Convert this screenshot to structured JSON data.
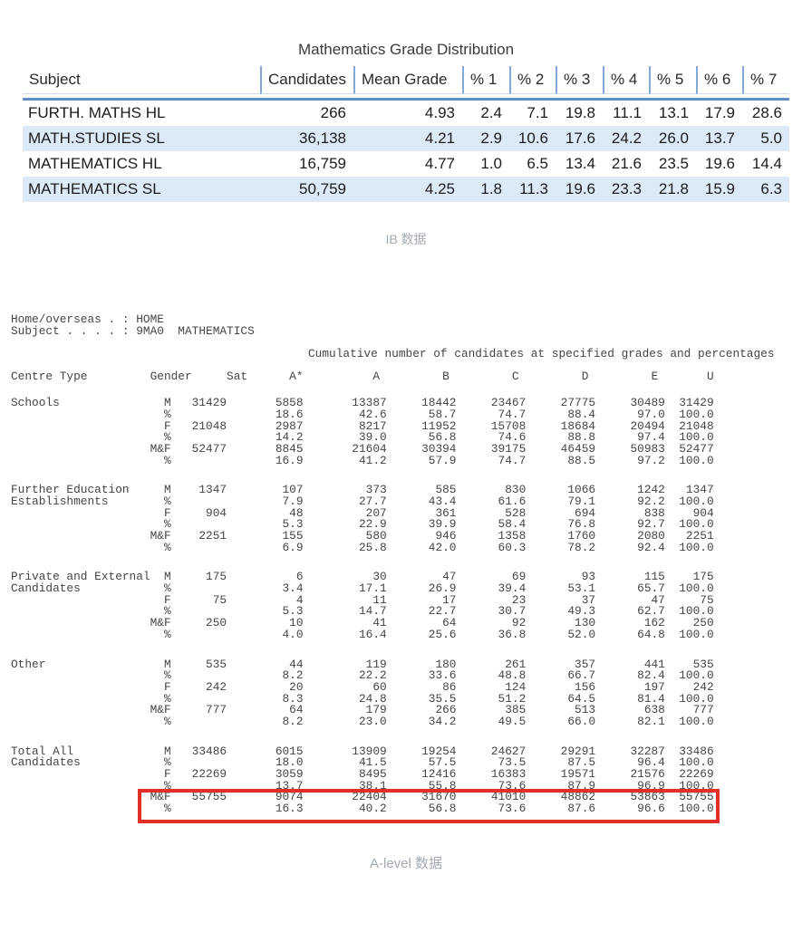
{
  "ib": {
    "title": "Mathematics Grade Distribution",
    "columns": [
      "Subject",
      "Candidates",
      "Mean Grade",
      "% 1",
      "% 2",
      "% 3",
      "% 4",
      "% 5",
      "% 6",
      "% 7"
    ],
    "rows": [
      {
        "subject": "FURTH. MATHS HL",
        "candidates": "266",
        "mean": "4.93",
        "pcts": [
          "2.4",
          "7.1",
          "19.8",
          "11.1",
          "13.1",
          "17.9",
          "28.6"
        ]
      },
      {
        "subject": "MATH.STUDIES SL",
        "candidates": "36,138",
        "mean": "4.21",
        "pcts": [
          "2.9",
          "10.6",
          "17.6",
          "24.2",
          "26.0",
          "13.7",
          "5.0"
        ]
      },
      {
        "subject": "MATHEMATICS HL",
        "candidates": "16,759",
        "mean": "4.77",
        "pcts": [
          "1.0",
          "6.5",
          "13.4",
          "21.6",
          "23.5",
          "19.6",
          "14.4"
        ]
      },
      {
        "subject": "MATHEMATICS SL",
        "candidates": "50,759",
        "mean": "4.25",
        "pcts": [
          "1.8",
          "11.3",
          "19.6",
          "23.3",
          "21.8",
          "15.9",
          "6.3"
        ]
      }
    ],
    "caption": "IB 数据",
    "accent_rule_color": "#5e8fc2",
    "row_stripe_color": "#dce9f6"
  },
  "alevel": {
    "meta_lines": [
      "Home/overseas . : HOME",
      "Subject . . . . : 9MA0  MATHEMATICS"
    ],
    "section_title": "Cumulative number of candidates at specified grades and percentages",
    "header": {
      "centre_type": "Centre Type",
      "gender": "Gender",
      "sat": "Sat",
      "grades": [
        "A*",
        "A",
        "B",
        "C",
        "D",
        "E",
        "U"
      ]
    },
    "groups": [
      {
        "name_lines": [
          "Schools"
        ],
        "rows": [
          {
            "gender": "M",
            "sat": "31429",
            "values": [
              "5858",
              "13387",
              "18442",
              "23467",
              "27775",
              "30489",
              "31429"
            ]
          },
          {
            "gender": "%",
            "sat": "",
            "values": [
              "18.6",
              "42.6",
              "58.7",
              "74.7",
              "88.4",
              "97.0",
              "100.0"
            ]
          },
          {
            "gender": "F",
            "sat": "21048",
            "values": [
              "2987",
              "8217",
              "11952",
              "15708",
              "18684",
              "20494",
              "21048"
            ]
          },
          {
            "gender": "%",
            "sat": "",
            "values": [
              "14.2",
              "39.0",
              "56.8",
              "74.6",
              "88.8",
              "97.4",
              "100.0"
            ]
          },
          {
            "gender": "M&F",
            "sat": "52477",
            "values": [
              "8845",
              "21604",
              "30394",
              "39175",
              "46459",
              "50983",
              "52477"
            ]
          },
          {
            "gender": "%",
            "sat": "",
            "values": [
              "16.9",
              "41.2",
              "57.9",
              "74.7",
              "88.5",
              "97.2",
              "100.0"
            ]
          }
        ]
      },
      {
        "name_lines": [
          "Further Education",
          "Establishments"
        ],
        "rows": [
          {
            "gender": "M",
            "sat": "1347",
            "values": [
              "107",
              "373",
              "585",
              "830",
              "1066",
              "1242",
              "1347"
            ]
          },
          {
            "gender": "%",
            "sat": "",
            "values": [
              "7.9",
              "27.7",
              "43.4",
              "61.6",
              "79.1",
              "92.2",
              "100.0"
            ]
          },
          {
            "gender": "F",
            "sat": "904",
            "values": [
              "48",
              "207",
              "361",
              "528",
              "694",
              "838",
              "904"
            ]
          },
          {
            "gender": "%",
            "sat": "",
            "values": [
              "5.3",
              "22.9",
              "39.9",
              "58.4",
              "76.8",
              "92.7",
              "100.0"
            ]
          },
          {
            "gender": "M&F",
            "sat": "2251",
            "values": [
              "155",
              "580",
              "946",
              "1358",
              "1760",
              "2080",
              "2251"
            ]
          },
          {
            "gender": "%",
            "sat": "",
            "values": [
              "6.9",
              "25.8",
              "42.0",
              "60.3",
              "78.2",
              "92.4",
              "100.0"
            ]
          }
        ]
      },
      {
        "name_lines": [
          "Private and External",
          "Candidates"
        ],
        "rows": [
          {
            "gender": "M",
            "sat": "175",
            "values": [
              "6",
              "30",
              "47",
              "69",
              "93",
              "115",
              "175"
            ]
          },
          {
            "gender": "%",
            "sat": "",
            "values": [
              "3.4",
              "17.1",
              "26.9",
              "39.4",
              "53.1",
              "65.7",
              "100.0"
            ]
          },
          {
            "gender": "F",
            "sat": "75",
            "values": [
              "4",
              "11",
              "17",
              "23",
              "37",
              "47",
              "75"
            ]
          },
          {
            "gender": "%",
            "sat": "",
            "values": [
              "5.3",
              "14.7",
              "22.7",
              "30.7",
              "49.3",
              "62.7",
              "100.0"
            ]
          },
          {
            "gender": "M&F",
            "sat": "250",
            "values": [
              "10",
              "41",
              "64",
              "92",
              "130",
              "162",
              "250"
            ]
          },
          {
            "gender": "%",
            "sat": "",
            "values": [
              "4.0",
              "16.4",
              "25.6",
              "36.8",
              "52.0",
              "64.8",
              "100.0"
            ]
          }
        ]
      },
      {
        "name_lines": [
          "Other"
        ],
        "rows": [
          {
            "gender": "M",
            "sat": "535",
            "values": [
              "44",
              "119",
              "180",
              "261",
              "357",
              "441",
              "535"
            ]
          },
          {
            "gender": "%",
            "sat": "",
            "values": [
              "8.2",
              "22.2",
              "33.6",
              "48.8",
              "66.7",
              "82.4",
              "100.0"
            ]
          },
          {
            "gender": "F",
            "sat": "242",
            "values": [
              "20",
              "60",
              "86",
              "124",
              "156",
              "197",
              "242"
            ]
          },
          {
            "gender": "%",
            "sat": "",
            "values": [
              "8.3",
              "24.8",
              "35.5",
              "51.2",
              "64.5",
              "81.4",
              "100.0"
            ]
          },
          {
            "gender": "M&F",
            "sat": "777",
            "values": [
              "64",
              "179",
              "266",
              "385",
              "513",
              "638",
              "777"
            ]
          },
          {
            "gender": "%",
            "sat": "",
            "values": [
              "8.2",
              "23.0",
              "34.2",
              "49.5",
              "66.0",
              "82.1",
              "100.0"
            ]
          }
        ]
      },
      {
        "name_lines": [
          "Total All",
          "Candidates"
        ],
        "highlight_rows": [
          4,
          5
        ],
        "rows": [
          {
            "gender": "M",
            "sat": "33486",
            "values": [
              "6015",
              "13909",
              "19254",
              "24627",
              "29291",
              "32287",
              "33486"
            ]
          },
          {
            "gender": "%",
            "sat": "",
            "values": [
              "18.0",
              "41.5",
              "57.5",
              "73.5",
              "87.5",
              "96.4",
              "100.0"
            ]
          },
          {
            "gender": "F",
            "sat": "22269",
            "values": [
              "3059",
              "8495",
              "12416",
              "16383",
              "19571",
              "21576",
              "22269"
            ]
          },
          {
            "gender": "%",
            "sat": "",
            "values": [
              "13.7",
              "38.1",
              "55.8",
              "73.6",
              "87.9",
              "96.9",
              "100.0"
            ]
          },
          {
            "gender": "M&F",
            "sat": "55755",
            "values": [
              "9074",
              "22404",
              "31670",
              "41010",
              "48862",
              "53863",
              "55755"
            ]
          },
          {
            "gender": "%",
            "sat": "",
            "values": [
              "16.3",
              "40.2",
              "56.8",
              "73.6",
              "87.6",
              "96.6",
              "100.0"
            ]
          }
        ]
      }
    ],
    "highlight_color": "#e23028",
    "caption": "A-level 数据"
  }
}
